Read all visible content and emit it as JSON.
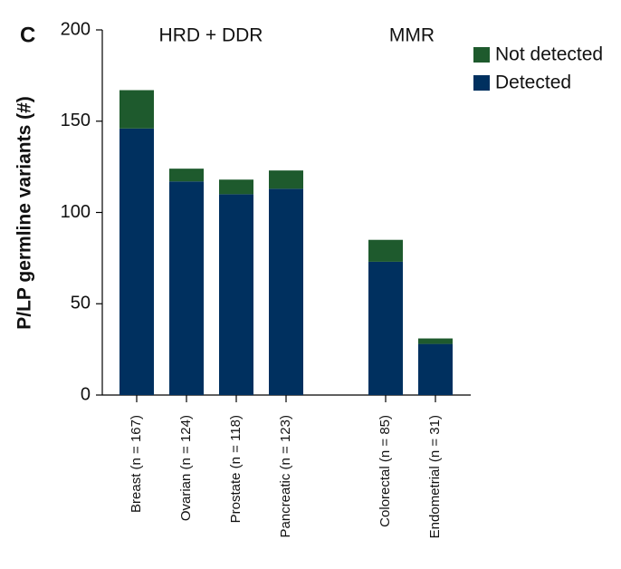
{
  "chart_data": {
    "type": "stacked_bar",
    "panel_label": "C",
    "y_label": "P/LP germline variants (#)",
    "annotations": [
      "HRD + DDR",
      "MMR"
    ],
    "categories": [
      "Breast (n = 167)",
      "Ovarian (n = 124)",
      "Prostate (n = 118)",
      "Pancreatic (n = 123)",
      null,
      "Colorectal (n = 85)",
      "Endometrial (n = 31)"
    ],
    "series": [
      {
        "name": "Detected",
        "color": "#00305f",
        "values": [
          146,
          117,
          110,
          113,
          null,
          73,
          28
        ]
      },
      {
        "name": "Not detected",
        "color": "#1e5a2d",
        "values": [
          21,
          7,
          8,
          10,
          null,
          12,
          3
        ]
      }
    ],
    "ylim": [
      0,
      200
    ],
    "yticks": [
      0,
      50,
      100,
      150,
      200
    ],
    "legend": "top-right"
  }
}
